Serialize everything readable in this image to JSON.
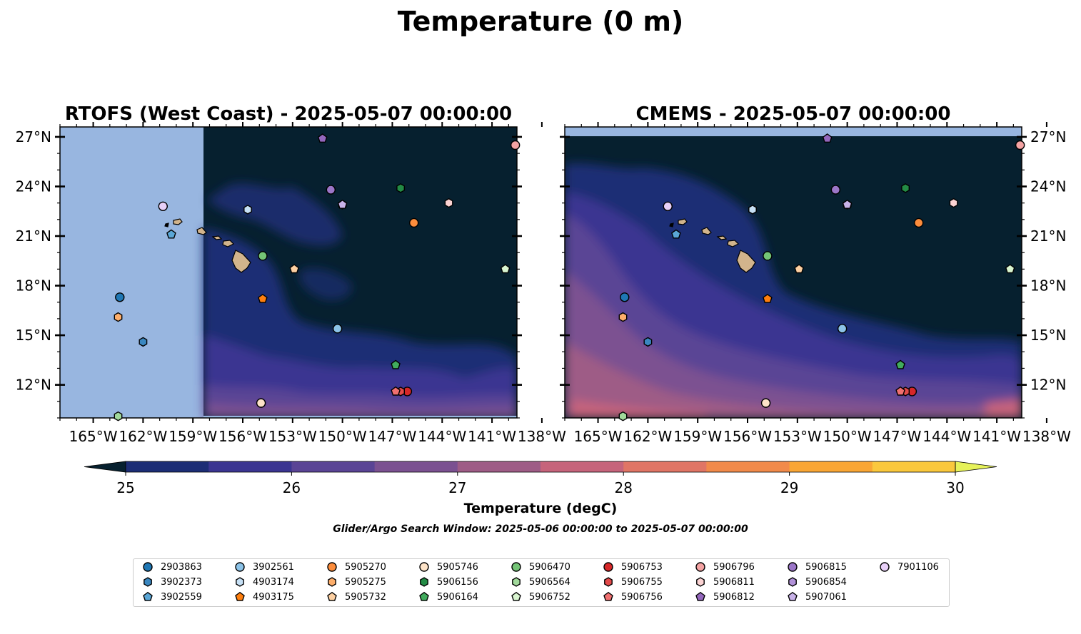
{
  "title": "Temperature (0 m)",
  "footer": "Glider/Argo Search Window: 2025-05-06 00:00:00 to 2025-05-07 00:00:00",
  "colors": {
    "land": "#d2b48c",
    "nodata": "#98b6e0",
    "marker_edge": "#000000"
  },
  "chart_data": [
    {
      "type": "heatmap",
      "title": "RTOFS (West Coast) - 2025-05-07 00:00:00",
      "x_ticks": [
        "165°W",
        "162°W",
        "159°W",
        "156°W",
        "153°W",
        "150°W",
        "147°W",
        "144°W",
        "141°W",
        "138°W"
      ],
      "x_tick_values": [
        -165,
        -162,
        -159,
        -156,
        -153,
        -150,
        -147,
        -144,
        -141,
        -138
      ],
      "y_ticks": [
        "27°N",
        "24°N",
        "21°N",
        "18°N",
        "15°N",
        "12°N"
      ],
      "y_tick_values": [
        27,
        24,
        21,
        18,
        15,
        12
      ],
      "xlim": [
        -167,
        -139.5
      ],
      "ylim": [
        10,
        27.6
      ],
      "ytick_side": "left",
      "model_domain_west_lon": -158.4
    },
    {
      "type": "heatmap",
      "title": "CMEMS - 2025-05-07 00:00:00",
      "x_ticks": [
        "165°W",
        "162°W",
        "159°W",
        "156°W",
        "153°W",
        "150°W",
        "147°W",
        "144°W",
        "141°W",
        "138°W"
      ],
      "x_tick_values": [
        -165,
        -162,
        -159,
        -156,
        -153,
        -150,
        -147,
        -144,
        -141,
        -138
      ],
      "y_ticks": [
        "27°N",
        "24°N",
        "21°N",
        "18°N",
        "15°N",
        "12°N"
      ],
      "y_tick_values": [
        27,
        24,
        21,
        18,
        15,
        12
      ],
      "xlim": [
        -167,
        -139.5
      ],
      "ylim": [
        10,
        27.6
      ],
      "ytick_side": "right",
      "model_domain_north_lat": 27.0
    },
    {
      "type": "colorbar",
      "label": "Temperature (degC)",
      "ticks": [
        "25",
        "26",
        "27",
        "28",
        "29",
        "30"
      ],
      "tick_values": [
        25,
        26,
        27,
        28,
        29,
        30
      ],
      "range": [
        25,
        30
      ],
      "step": 0.5,
      "colors": [
        "#06202f",
        "#1c2d75",
        "#3b3591",
        "#5a4495",
        "#7b5191",
        "#9e5c86",
        "#c6647b",
        "#e07565",
        "#f18a4a",
        "#f9a635",
        "#fac83d",
        "#e6f25a"
      ],
      "extend": "both"
    }
  ],
  "floats": [
    {
      "id": "2903863",
      "marker": "circle",
      "color": "#1f77b4",
      "lon": -163.4,
      "lat": 17.3
    },
    {
      "id": "3902373",
      "marker": "hexagon",
      "color": "#3a87c0",
      "lon": -162.0,
      "lat": 14.6
    },
    {
      "id": "3902559",
      "marker": "pentagon",
      "color": "#5aa6d6",
      "lon": -160.3,
      "lat": 21.1
    },
    {
      "id": "3902561",
      "marker": "circle",
      "color": "#8cc3e8",
      "lon": -150.3,
      "lat": 15.4
    },
    {
      "id": "4903174",
      "marker": "hexagon",
      "color": "#c6e0f5",
      "lon": -155.7,
      "lat": 22.6
    },
    {
      "id": "4903175",
      "marker": "pentagon",
      "color": "#ff7f0e",
      "lon": -154.8,
      "lat": 17.2
    },
    {
      "id": "5905270",
      "marker": "circle",
      "color": "#fd8d3c",
      "lon": -145.7,
      "lat": 21.8
    },
    {
      "id": "5905275",
      "marker": "hexagon",
      "color": "#fdae6b",
      "lon": -163.5,
      "lat": 16.1
    },
    {
      "id": "5905732",
      "marker": "pentagon",
      "color": "#fdd0a2",
      "lon": -152.9,
      "lat": 19.0
    },
    {
      "id": "5905746",
      "marker": "circle",
      "color": "#fde3c8",
      "lon": -154.9,
      "lat": 10.9
    },
    {
      "id": "5906156",
      "marker": "hexagon",
      "color": "#238b45",
      "lon": -146.5,
      "lat": 23.9
    },
    {
      "id": "5906164",
      "marker": "pentagon",
      "color": "#41ab5d",
      "lon": -146.8,
      "lat": 13.2
    },
    {
      "id": "5906470",
      "marker": "circle",
      "color": "#74c476",
      "lon": -154.8,
      "lat": 19.8
    },
    {
      "id": "5906564",
      "marker": "hexagon",
      "color": "#a1d99b",
      "lon": -163.5,
      "lat": 10.1
    },
    {
      "id": "5906752",
      "marker": "pentagon",
      "color": "#d9f5d0",
      "lon": -140.2,
      "lat": 19.0
    },
    {
      "id": "5906753",
      "marker": "circle",
      "color": "#d62728",
      "lon": -146.1,
      "lat": 11.6
    },
    {
      "id": "5906755",
      "marker": "hexagon",
      "color": "#e34a4a",
      "lon": -146.5,
      "lat": 11.6
    },
    {
      "id": "5906756",
      "marker": "pentagon",
      "color": "#f07070",
      "lon": -146.8,
      "lat": 11.6
    },
    {
      "id": "5906796",
      "marker": "circle",
      "color": "#f4a3a3",
      "lon": -139.6,
      "lat": 26.5
    },
    {
      "id": "5906811",
      "marker": "hexagon",
      "color": "#fbd3d3",
      "lon": -143.6,
      "lat": 23.0
    },
    {
      "id": "5906812",
      "marker": "pentagon",
      "color": "#9467bd",
      "lon": -151.2,
      "lat": 26.9
    },
    {
      "id": "5906815",
      "marker": "circle",
      "color": "#9b76c8",
      "lon": -150.7,
      "lat": 23.8
    },
    {
      "id": "5906854",
      "marker": "hexagon",
      "color": "#b191d8",
      "lon": -150.0,
      "lat": 22.9
    },
    {
      "id": "5907061",
      "marker": "pentagon",
      "color": "#c8b2e8",
      "lon": -150.0,
      "lat": 22.9
    },
    {
      "id": "7901106",
      "marker": "circle",
      "color": "#e8d0f8",
      "lon": -160.8,
      "lat": 22.8
    }
  ]
}
